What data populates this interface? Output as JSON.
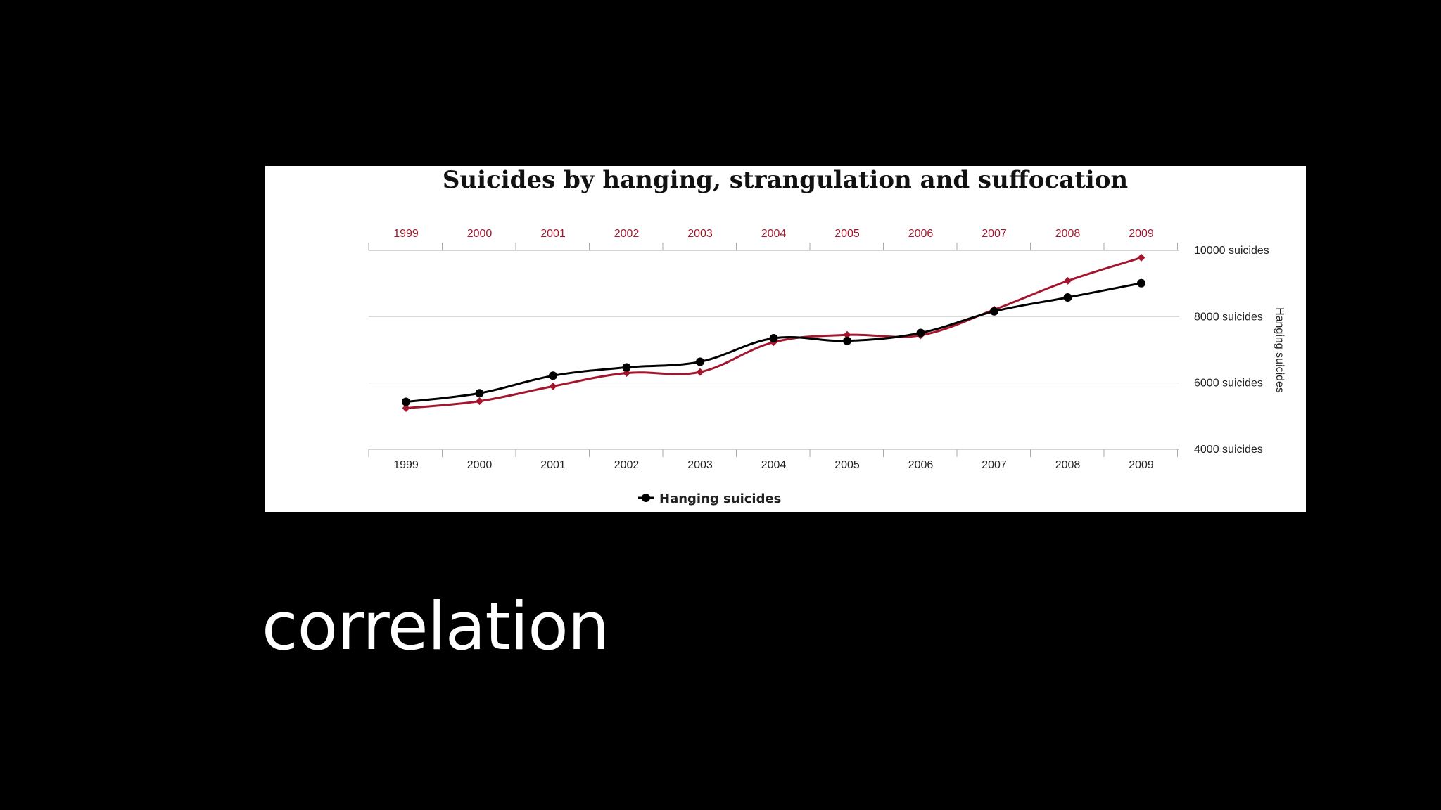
{
  "slide": {
    "caption": "correlation"
  },
  "chart_data": {
    "type": "line",
    "title": "Suicides by hanging, strangulation and suffocation",
    "x": [
      "1999",
      "2000",
      "2001",
      "2002",
      "2003",
      "2004",
      "2005",
      "2006",
      "2007",
      "2008",
      "2009"
    ],
    "top_x_ticks": [
      "1999",
      "2000",
      "2001",
      "2002",
      "2003",
      "2004",
      "2005",
      "2006",
      "2007",
      "2008",
      "2009"
    ],
    "bottom_x_ticks": [
      "1999",
      "2000",
      "2001",
      "2002",
      "2003",
      "2004",
      "2005",
      "2006",
      "2007",
      "2008",
      "2009"
    ],
    "y_axis": {
      "side": "right",
      "label": "Hanging suicides",
      "ticks": [
        4000,
        6000,
        8000,
        10000
      ],
      "tick_labels": [
        "4000 suicides",
        "6000 suicides",
        "8000 suicides",
        "10000 suicides"
      ],
      "range": [
        4000,
        10000
      ]
    },
    "grid": true,
    "legend": {
      "position": "bottom",
      "entries": [
        "Hanging suicides"
      ]
    },
    "series": [
      {
        "name": "Hanging suicides",
        "color": "#000000",
        "marker": "circle",
        "values": [
          5430,
          5690,
          6220,
          6470,
          6640,
          7350,
          7270,
          7510,
          8160,
          8580,
          9010
        ]
      },
      {
        "color": "#a3162d",
        "marker": "diamond",
        "values": [
          5240,
          5450,
          5900,
          6300,
          6330,
          7230,
          7450,
          7440,
          8210,
          9080,
          9780
        ]
      }
    ]
  }
}
